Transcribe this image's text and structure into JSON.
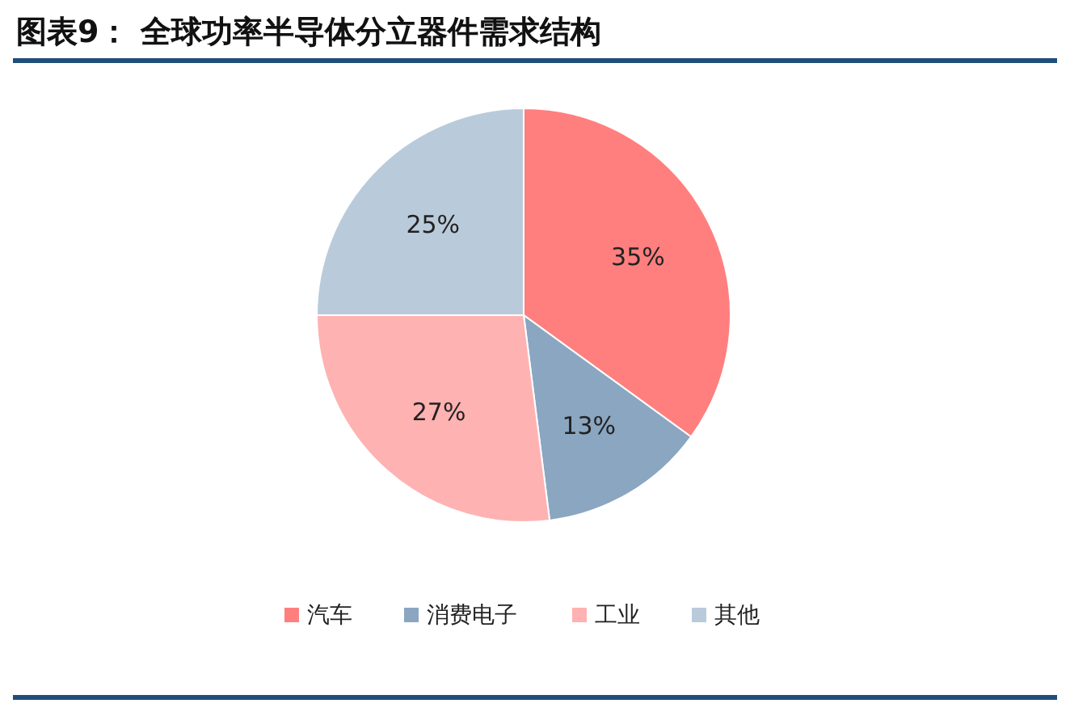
{
  "chart_data": {
    "type": "pie",
    "title": "图表9：  全球功率半导体分立器件需求结构",
    "categories": [
      "汽车",
      "消费电子",
      "工业",
      "其他"
    ],
    "values": [
      35,
      13,
      27,
      25
    ],
    "colors": [
      "#ff7f7f",
      "#8aa6c1",
      "#ffb2b2",
      "#b9cbdb"
    ],
    "value_labels": [
      "35%",
      "13%",
      "27%",
      "25%"
    ],
    "legend": "bottom"
  }
}
